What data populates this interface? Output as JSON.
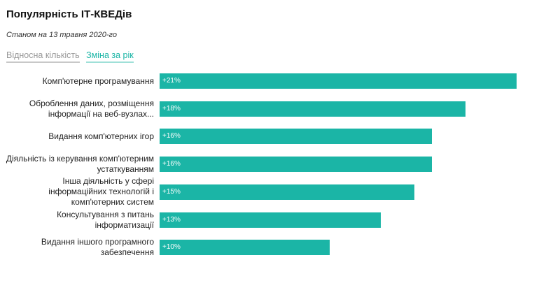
{
  "title": "Популярність ІТ-КВЕДів",
  "subtitle": "Станом на 13 травня 2020-го",
  "tabs": [
    {
      "label": "Відносна кількість",
      "active": false
    },
    {
      "label": "Зміна за рік",
      "active": true
    }
  ],
  "colors": {
    "bar": "#1bb5a6",
    "accent": "#1bb5a6"
  },
  "chart_data": {
    "type": "bar",
    "orientation": "horizontal",
    "categories": [
      "Комп'ютерне програмування",
      "Оброблення даних, розміщення інформації на веб-вузлах...",
      "Видання комп'ютерних ігор",
      "Діяльність із керування комп'ютерним устаткуванням",
      "Інша діяльність у сфері інформаційних технологій і комп'ютерних систем",
      "Консультування з питань інформатизації",
      "Видання іншого програмного забезпечення"
    ],
    "values": [
      21,
      18,
      16,
      16,
      15,
      13,
      10
    ],
    "value_labels": [
      "+21%",
      "+18%",
      "+16%",
      "+16%",
      "+15%",
      "+13%",
      "+10%"
    ],
    "unit": "%",
    "xlim": [
      0,
      21
    ],
    "grid": false
  }
}
